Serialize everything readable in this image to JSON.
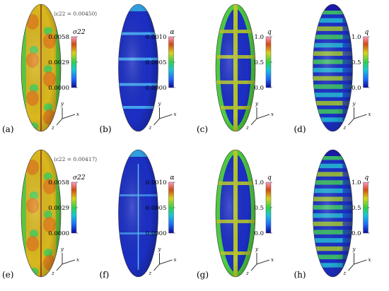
{
  "panels": [
    {
      "label": "(a)",
      "var": "σ22",
      "scheme": "stress",
      "annotation": "⟨ε22 = 0.00450⟩",
      "ticks": [
        "0.0058",
        "0.0029",
        "0.0000"
      ]
    },
    {
      "label": "(b)",
      "var": "α",
      "scheme": "alpha",
      "annotation": "",
      "ticks": [
        "0.0010",
        "0.0005",
        "0.0000"
      ]
    },
    {
      "label": "(c)",
      "var": "q",
      "scheme": "grid",
      "annotation": "",
      "ticks": [
        "1.0",
        "0.5",
        "0.0"
      ]
    },
    {
      "label": "(d)",
      "var": "q",
      "scheme": "bands",
      "annotation": "",
      "ticks": [
        "1.0",
        "0.5",
        "0.0"
      ]
    },
    {
      "label": "(e)",
      "var": "σ22",
      "scheme": "stress",
      "annotation": "⟨ε22 = 0.00417⟩",
      "ticks": [
        "0.0058",
        "0.0029",
        "0.0000"
      ]
    },
    {
      "label": "(f)",
      "var": "α",
      "scheme": "alpha2",
      "annotation": "",
      "ticks": [
        "0.0010",
        "0.0005",
        "0.0000"
      ]
    },
    {
      "label": "(g)",
      "var": "q",
      "scheme": "grid2",
      "annotation": "",
      "ticks": [
        "1.0",
        "0.5",
        "0.0"
      ]
    },
    {
      "label": "(h)",
      "var": "q",
      "scheme": "bands2",
      "annotation": "",
      "ticks": [
        "1.0",
        "0.5",
        "0.0"
      ]
    }
  ],
  "axis_labels": {
    "x": "x",
    "y": "y",
    "z": "z"
  },
  "colors": {
    "min": "#1a1aa8",
    "low": "#1e90ff",
    "mid": "#3fcf5a",
    "high": "#d9b81f",
    "max": "#b80f0f"
  }
}
